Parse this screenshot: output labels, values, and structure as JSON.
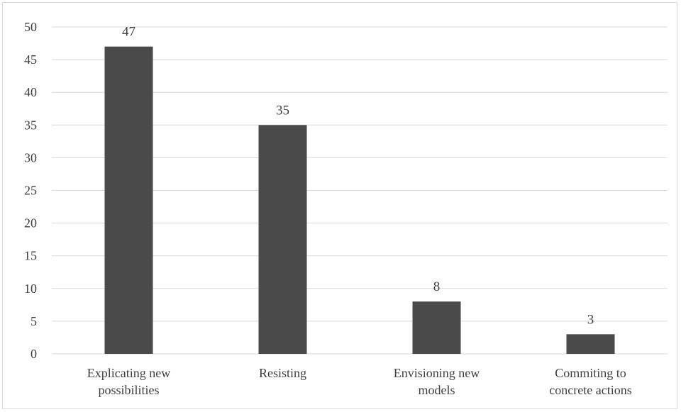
{
  "chart_data": {
    "type": "bar",
    "title": "",
    "xlabel": "",
    "ylabel": "",
    "categories": [
      [
        "Explicating new",
        "possibilities"
      ],
      [
        "Resisting"
      ],
      [
        "Envisioning new",
        "models"
      ],
      [
        "Commiting to",
        "concrete actions"
      ]
    ],
    "values": [
      47,
      35,
      8,
      3
    ],
    "ylim": [
      0,
      50
    ],
    "yticks": [
      0,
      5,
      10,
      15,
      20,
      25,
      30,
      35,
      40,
      45,
      50
    ],
    "grid": true,
    "legend": "none",
    "data_labels": true,
    "bar_color": "#4a4a4a",
    "grid_color": "#d9d9d9"
  }
}
